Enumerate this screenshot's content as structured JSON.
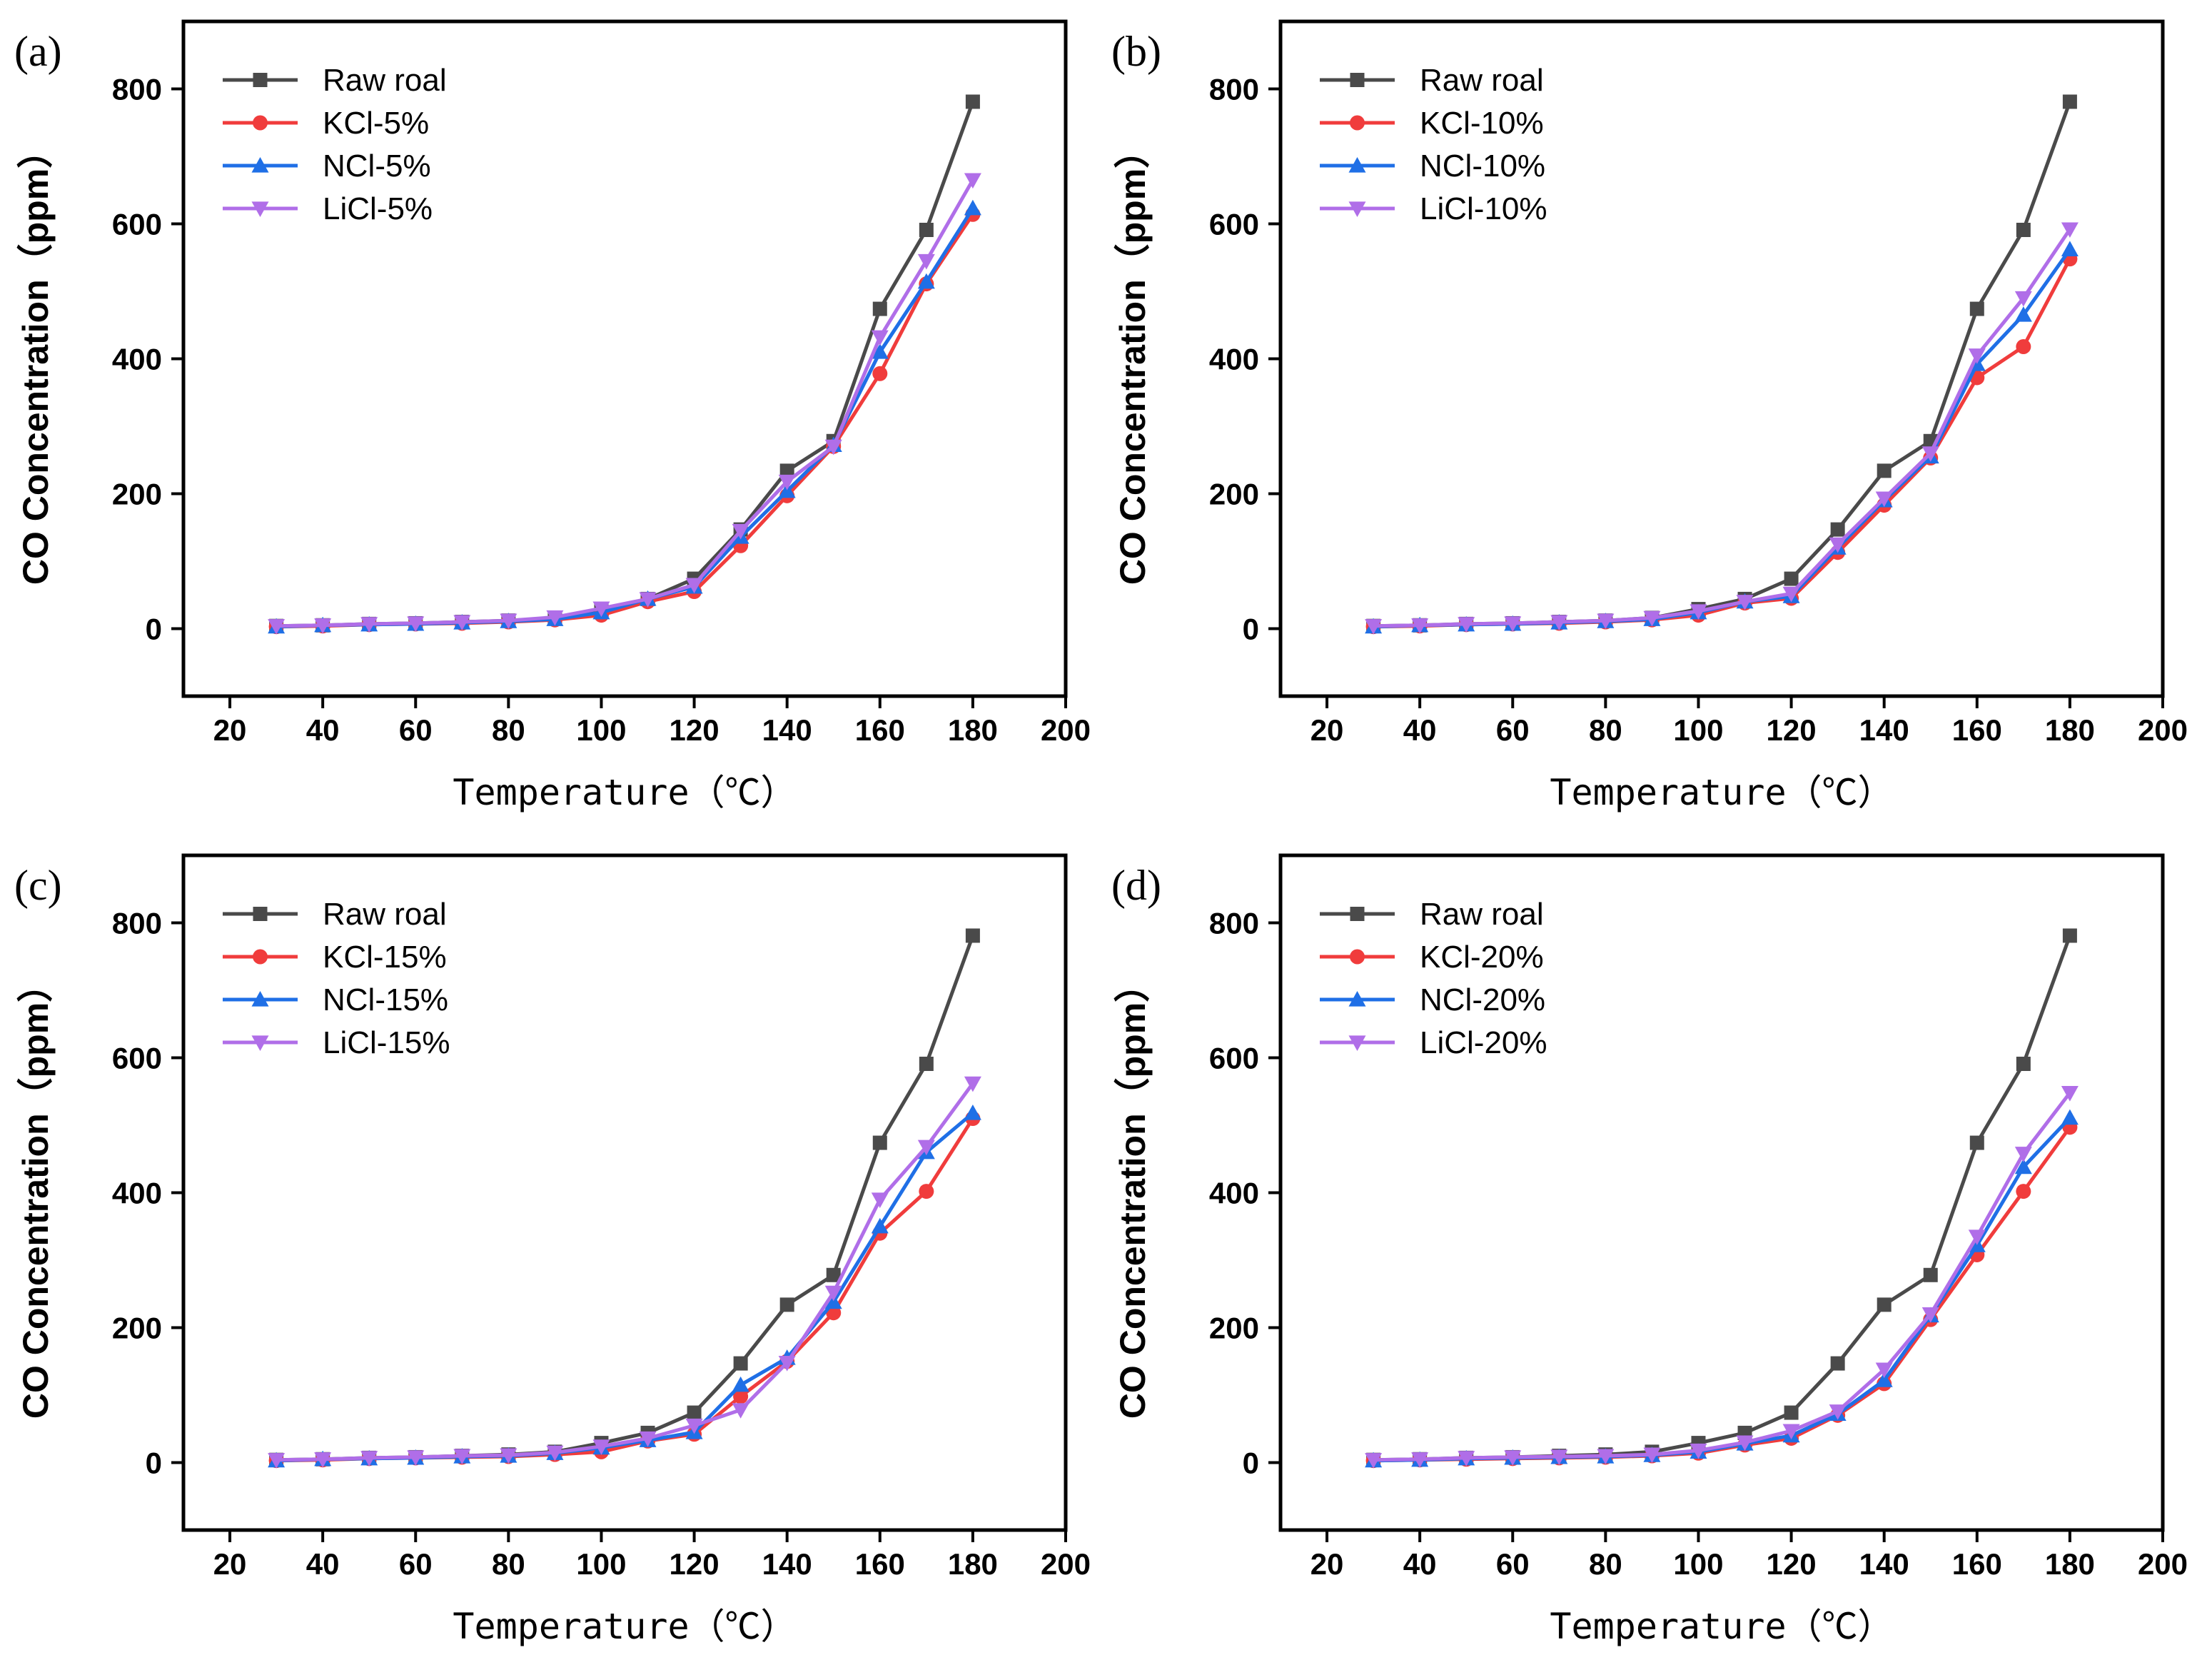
{
  "figure": {
    "series_colors": [
      "#4a4a4a",
      "#f03c3c",
      "#1f6fe6",
      "#b06ee8"
    ],
    "markers": [
      "square",
      "circle",
      "triangle-up",
      "triangle-down"
    ]
  },
  "chart_data": [
    {
      "type": "line",
      "panel": "(a)",
      "xlabel": "Temperature（℃）",
      "ylabel": "CO Concentration（ppm）",
      "xlim": [
        10,
        200
      ],
      "ylim": [
        -100,
        900
      ],
      "xticks": [
        20,
        40,
        60,
        80,
        100,
        120,
        140,
        160,
        180,
        200
      ],
      "yticks": [
        0,
        200,
        400,
        600,
        800
      ],
      "legend_position": "top-left",
      "x": [
        30,
        40,
        50,
        60,
        70,
        80,
        90,
        100,
        110,
        120,
        130,
        140,
        150,
        160,
        170,
        180
      ],
      "series": [
        {
          "name": "Raw roal",
          "values": [
            4,
            5,
            7,
            8,
            10,
            12,
            16,
            29,
            44,
            74,
            147,
            234,
            278,
            474,
            591,
            781
          ]
        },
        {
          "name": "KCl-5%",
          "values": [
            3,
            4,
            6,
            7,
            8,
            10,
            13,
            20,
            40,
            55,
            123,
            197,
            270,
            378,
            511,
            614
          ]
        },
        {
          "name": "NCl-5%",
          "values": [
            3,
            5,
            6,
            7,
            9,
            11,
            14,
            24,
            44,
            62,
            136,
            204,
            272,
            410,
            514,
            623
          ]
        },
        {
          "name": "LiCl-5%",
          "values": [
            4,
            5,
            7,
            8,
            10,
            12,
            17,
            30,
            44,
            65,
            145,
            218,
            270,
            432,
            545,
            665
          ]
        }
      ]
    },
    {
      "type": "line",
      "panel": "(b)",
      "xlabel": "Temperature（℃）",
      "ylabel": "CO Concentration（ppm）",
      "xlim": [
        10,
        200
      ],
      "ylim": [
        -100,
        900
      ],
      "xticks": [
        20,
        40,
        60,
        80,
        100,
        120,
        140,
        160,
        180,
        200
      ],
      "yticks": [
        0,
        200,
        400,
        600,
        800
      ],
      "legend_position": "top-left",
      "x": [
        30,
        40,
        50,
        60,
        70,
        80,
        90,
        100,
        110,
        120,
        130,
        140,
        150,
        160,
        170,
        180
      ],
      "series": [
        {
          "name": "Raw roal",
          "values": [
            4,
            5,
            7,
            8,
            10,
            12,
            16,
            29,
            44,
            74,
            147,
            234,
            278,
            474,
            591,
            781
          ]
        },
        {
          "name": "KCl-10%",
          "values": [
            3,
            4,
            6,
            7,
            8,
            10,
            13,
            20,
            38,
            45,
            113,
            183,
            253,
            372,
            418,
            548
          ]
        },
        {
          "name": "NCl-10%",
          "values": [
            3,
            5,
            6,
            7,
            9,
            11,
            14,
            24,
            40,
            48,
            120,
            190,
            255,
            392,
            465,
            562
          ]
        },
        {
          "name": "LiCl-10%",
          "values": [
            4,
            5,
            7,
            8,
            10,
            12,
            16,
            26,
            40,
            52,
            125,
            193,
            260,
            405,
            490,
            592
          ]
        }
      ]
    },
    {
      "type": "line",
      "panel": "(c)",
      "xlabel": "Temperature（℃）",
      "ylabel": "CO Concentration（ppm）",
      "xlim": [
        10,
        200
      ],
      "ylim": [
        -100,
        900
      ],
      "xticks": [
        20,
        40,
        60,
        80,
        100,
        120,
        140,
        160,
        180,
        200
      ],
      "yticks": [
        0,
        200,
        400,
        600,
        800
      ],
      "legend_position": "top-left",
      "x": [
        30,
        40,
        50,
        60,
        70,
        80,
        90,
        100,
        110,
        120,
        130,
        140,
        150,
        160,
        170,
        180
      ],
      "series": [
        {
          "name": "Raw roal",
          "values": [
            4,
            5,
            7,
            8,
            10,
            12,
            16,
            29,
            44,
            74,
            147,
            234,
            278,
            474,
            591,
            781
          ]
        },
        {
          "name": "KCl-15%",
          "values": [
            3,
            4,
            6,
            7,
            8,
            9,
            12,
            16,
            32,
            42,
            98,
            150,
            222,
            340,
            402,
            510
          ]
        },
        {
          "name": "NCl-15%",
          "values": [
            3,
            5,
            6,
            7,
            9,
            10,
            14,
            22,
            33,
            45,
            115,
            155,
            238,
            350,
            460,
            518
          ]
        },
        {
          "name": "LiCl-15%",
          "values": [
            4,
            5,
            7,
            8,
            10,
            11,
            15,
            24,
            36,
            55,
            78,
            148,
            252,
            390,
            468,
            562
          ]
        }
      ]
    },
    {
      "type": "line",
      "panel": "(d)",
      "xlabel": "Temperature（℃）",
      "ylabel": "CO Concentration（ppm）",
      "xlim": [
        10,
        200
      ],
      "ylim": [
        -100,
        900
      ],
      "xticks": [
        20,
        40,
        60,
        80,
        100,
        120,
        140,
        160,
        180,
        200
      ],
      "yticks": [
        0,
        200,
        400,
        600,
        800
      ],
      "legend_position": "top-left",
      "x": [
        30,
        40,
        50,
        60,
        70,
        80,
        90,
        100,
        110,
        120,
        130,
        140,
        150,
        160,
        170,
        180
      ],
      "series": [
        {
          "name": "Raw roal",
          "values": [
            4,
            5,
            7,
            8,
            10,
            12,
            16,
            29,
            44,
            74,
            147,
            234,
            278,
            474,
            591,
            781
          ]
        },
        {
          "name": "KCl-20%",
          "values": [
            3,
            4,
            5,
            6,
            7,
            8,
            10,
            14,
            26,
            36,
            70,
            117,
            212,
            308,
            402,
            497
          ]
        },
        {
          "name": "NCl-20%",
          "values": [
            3,
            4,
            6,
            7,
            8,
            9,
            11,
            16,
            28,
            40,
            72,
            122,
            218,
            322,
            438,
            511
          ]
        },
        {
          "name": "LiCl-20%",
          "values": [
            4,
            5,
            7,
            8,
            9,
            10,
            12,
            18,
            30,
            47,
            76,
            138,
            220,
            335,
            458,
            548
          ]
        }
      ]
    }
  ]
}
